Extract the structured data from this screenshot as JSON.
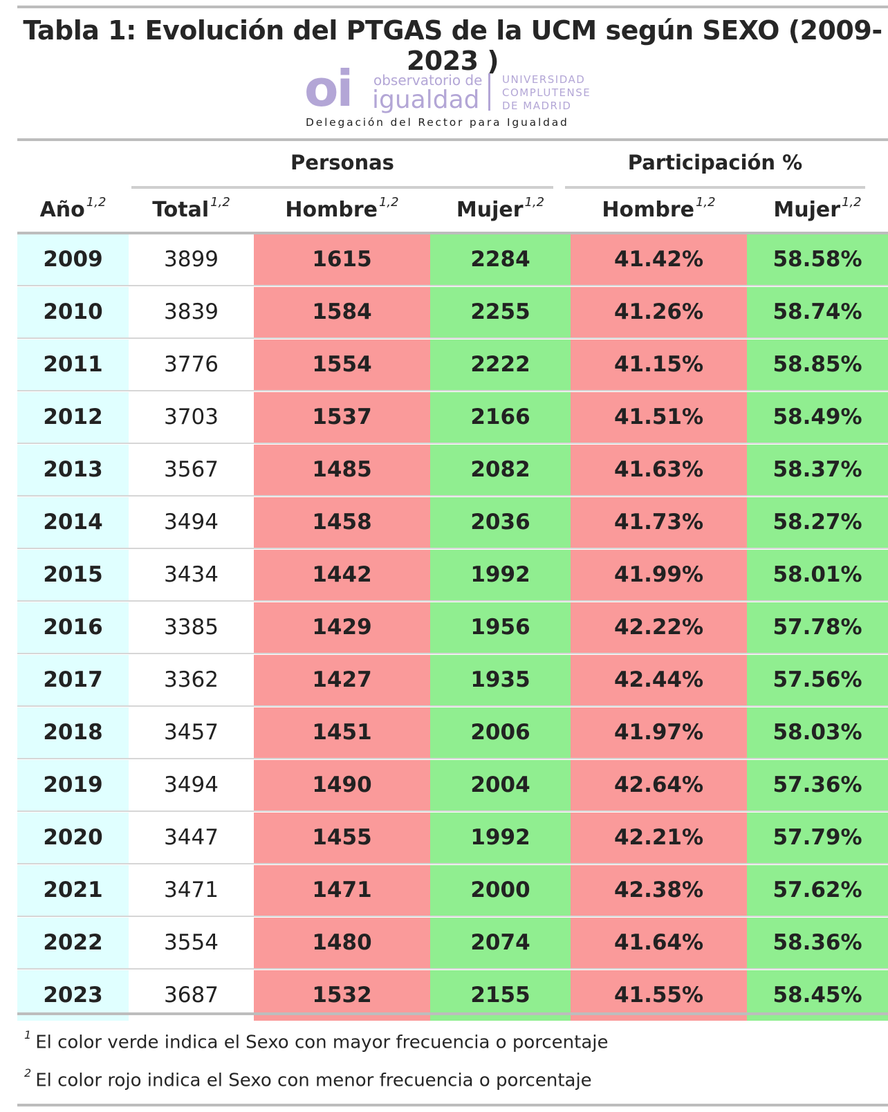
{
  "title": "Tabla 1: Evolución del PTGAS de la UCM según SEXO (2009- 2023 )",
  "logo": {
    "mark": "oi",
    "line1": "observatorio de",
    "line2": "igualdad",
    "univ1": "UNIVERSIDAD",
    "univ2": "COMPLUTENSE",
    "univ3": "DE MADRID",
    "delegacion": "Delegación del Rector para Igualdad"
  },
  "header": {
    "group_personas": "Personas",
    "group_participacion": "Participación %",
    "col_year": "Año",
    "col_total": "Total",
    "col_hombre": "Hombre",
    "col_mujer": "Mujer",
    "col_phombre": "Hombre",
    "col_pmujer": "Mujer",
    "footnote_mark": "1,2"
  },
  "colors": {
    "year_bg": "#e0ffff",
    "lower_red": "#fa9a9a",
    "higher_green": "#90ee90"
  },
  "rows": [
    {
      "year": "2009",
      "total": "3899",
      "hombre": "1615",
      "mujer": "2284",
      "phombre": "41.42%",
      "pmujer": "58.58%"
    },
    {
      "year": "2010",
      "total": "3839",
      "hombre": "1584",
      "mujer": "2255",
      "phombre": "41.26%",
      "pmujer": "58.74%"
    },
    {
      "year": "2011",
      "total": "3776",
      "hombre": "1554",
      "mujer": "2222",
      "phombre": "41.15%",
      "pmujer": "58.85%"
    },
    {
      "year": "2012",
      "total": "3703",
      "hombre": "1537",
      "mujer": "2166",
      "phombre": "41.51%",
      "pmujer": "58.49%"
    },
    {
      "year": "2013",
      "total": "3567",
      "hombre": "1485",
      "mujer": "2082",
      "phombre": "41.63%",
      "pmujer": "58.37%"
    },
    {
      "year": "2014",
      "total": "3494",
      "hombre": "1458",
      "mujer": "2036",
      "phombre": "41.73%",
      "pmujer": "58.27%"
    },
    {
      "year": "2015",
      "total": "3434",
      "hombre": "1442",
      "mujer": "1992",
      "phombre": "41.99%",
      "pmujer": "58.01%"
    },
    {
      "year": "2016",
      "total": "3385",
      "hombre": "1429",
      "mujer": "1956",
      "phombre": "42.22%",
      "pmujer": "57.78%"
    },
    {
      "year": "2017",
      "total": "3362",
      "hombre": "1427",
      "mujer": "1935",
      "phombre": "42.44%",
      "pmujer": "57.56%"
    },
    {
      "year": "2018",
      "total": "3457",
      "hombre": "1451",
      "mujer": "2006",
      "phombre": "41.97%",
      "pmujer": "58.03%"
    },
    {
      "year": "2019",
      "total": "3494",
      "hombre": "1490",
      "mujer": "2004",
      "phombre": "42.64%",
      "pmujer": "57.36%"
    },
    {
      "year": "2020",
      "total": "3447",
      "hombre": "1455",
      "mujer": "1992",
      "phombre": "42.21%",
      "pmujer": "57.79%"
    },
    {
      "year": "2021",
      "total": "3471",
      "hombre": "1471",
      "mujer": "2000",
      "phombre": "42.38%",
      "pmujer": "57.62%"
    },
    {
      "year": "2022",
      "total": "3554",
      "hombre": "1480",
      "mujer": "2074",
      "phombre": "41.64%",
      "pmujer": "58.36%"
    },
    {
      "year": "2023",
      "total": "3687",
      "hombre": "1532",
      "mujer": "2155",
      "phombre": "41.55%",
      "pmujer": "58.45%"
    }
  ],
  "footnotes": [
    {
      "mark": "1",
      "text": "El color verde indica el Sexo con mayor frecuencia o porcentaje"
    },
    {
      "mark": "2",
      "text": "El color rojo indica el Sexo con menor frecuencia o porcentaje"
    }
  ]
}
